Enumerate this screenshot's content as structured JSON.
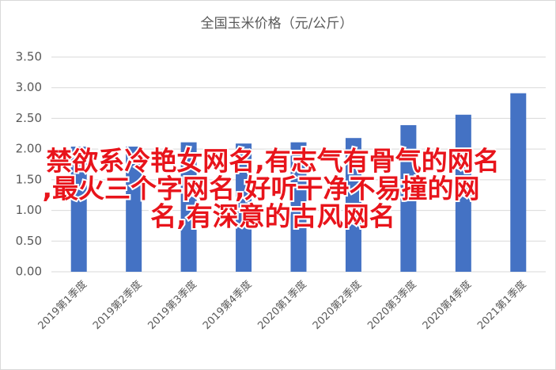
{
  "chart_data": {
    "type": "bar",
    "title": "全国玉米价格（元/公斤）",
    "categories": [
      "2019第1季度",
      "2019第2季度",
      "2019第3季度",
      "2019第4季度",
      "2020第1季度",
      "2020第2季度",
      "2020第3季度",
      "2020第4季度",
      "2021第1季度"
    ],
    "values": [
      2.04,
      2.04,
      2.11,
      2.09,
      2.11,
      2.18,
      2.39,
      2.56,
      2.91
    ],
    "color": "#4472c4",
    "ylim": [
      0,
      3.5
    ],
    "yticks": [
      {
        "value": 0,
        "label": "0.00"
      },
      {
        "value": 0.5,
        "label": "0.50"
      },
      {
        "value": 1,
        "label": "1.00"
      },
      {
        "value": 1.5,
        "label": "1.50"
      },
      {
        "value": 2,
        "label": "2.00"
      },
      {
        "value": 2.5,
        "label": "2.50"
      },
      {
        "value": 3,
        "label": "3.00"
      },
      {
        "value": 3.5,
        "label": "3.50"
      }
    ],
    "grid": true
  },
  "overlay": {
    "lines": [
      "禁欲系冷艳女网名,有志气有骨气的网名",
      ",最火三个字网名,好听干净不易撞的网",
      "名,有深意的古风网名"
    ]
  }
}
